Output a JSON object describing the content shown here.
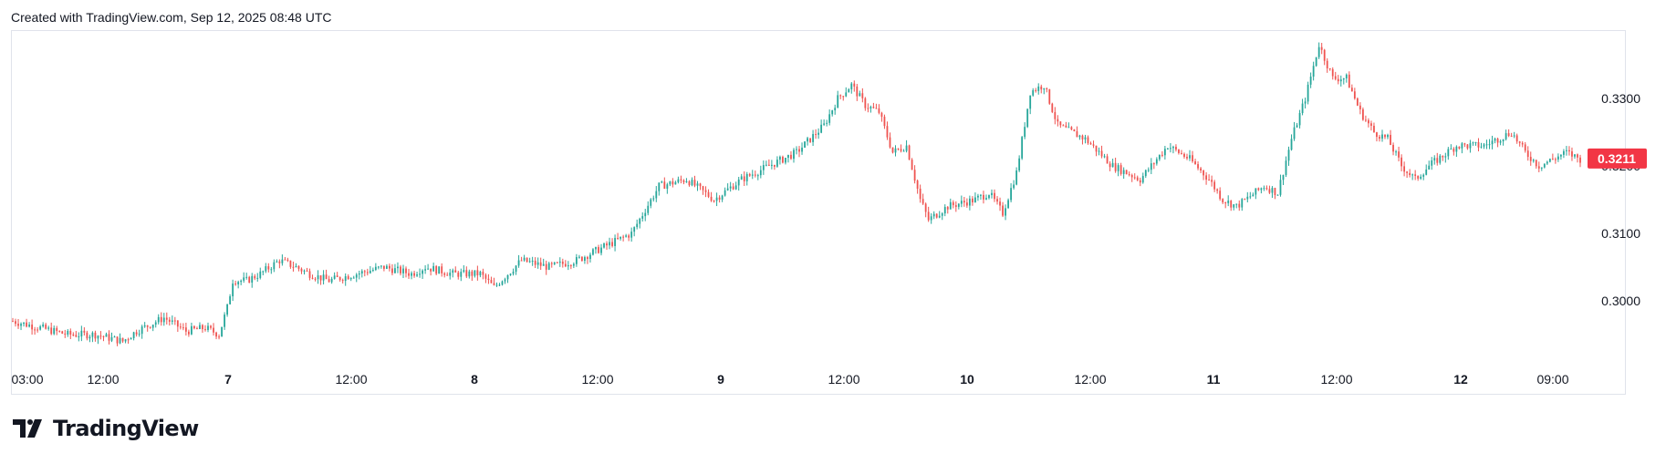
{
  "header": {
    "text": "Created with TradingView.com, Sep 12, 2025 08:48 UTC"
  },
  "brand": {
    "name": "TradingView"
  },
  "colors": {
    "up": "#26a69a",
    "down": "#ef5350",
    "last_price_bg": "#f23645",
    "axis_text": "#131722"
  },
  "chart_data": {
    "type": "candlestick",
    "x_ticks": [
      {
        "label": "03:00",
        "bold": false
      },
      {
        "label": "12:00",
        "bold": false
      },
      {
        "label": "7",
        "bold": true
      },
      {
        "label": "12:00",
        "bold": false
      },
      {
        "label": "8",
        "bold": true
      },
      {
        "label": "12:00",
        "bold": false
      },
      {
        "label": "9",
        "bold": true
      },
      {
        "label": "12:00",
        "bold": false
      },
      {
        "label": "10",
        "bold": true
      },
      {
        "label": "12:00",
        "bold": false
      },
      {
        "label": "11",
        "bold": true
      },
      {
        "label": "12:00",
        "bold": false
      },
      {
        "label": "12",
        "bold": true
      },
      {
        "label": "09:00",
        "bold": false
      }
    ],
    "y_ticks": [
      "0.3300",
      "0.3200",
      "0.3100",
      "0.3000"
    ],
    "y_range": [
      0.292,
      0.34
    ],
    "last_price": "0.3211",
    "close_trace": [
      [
        0,
        0.297
      ],
      [
        10,
        0.296
      ],
      [
        20,
        0.295
      ],
      [
        30,
        0.295
      ],
      [
        40,
        0.294
      ],
      [
        45,
        0.2955
      ],
      [
        55,
        0.2975
      ],
      [
        63,
        0.2955
      ],
      [
        70,
        0.296
      ],
      [
        75,
        0.295
      ],
      [
        78,
        0.299
      ],
      [
        80,
        0.303
      ],
      [
        85,
        0.303
      ],
      [
        90,
        0.304
      ],
      [
        97,
        0.306
      ],
      [
        103,
        0.305
      ],
      [
        108,
        0.304
      ],
      [
        115,
        0.303
      ],
      [
        125,
        0.304
      ],
      [
        135,
        0.305
      ],
      [
        145,
        0.304
      ],
      [
        150,
        0.305
      ],
      [
        160,
        0.304
      ],
      [
        170,
        0.304
      ],
      [
        175,
        0.302
      ],
      [
        185,
        0.306
      ],
      [
        195,
        0.305
      ],
      [
        205,
        0.306
      ],
      [
        215,
        0.308
      ],
      [
        225,
        0.31
      ],
      [
        235,
        0.317
      ],
      [
        245,
        0.318
      ],
      [
        255,
        0.315
      ],
      [
        265,
        0.318
      ],
      [
        275,
        0.32
      ],
      [
        285,
        0.322
      ],
      [
        295,
        0.326
      ],
      [
        300,
        0.33
      ],
      [
        305,
        0.332
      ],
      [
        310,
        0.329
      ],
      [
        315,
        0.328
      ],
      [
        320,
        0.322
      ],
      [
        325,
        0.323
      ],
      [
        330,
        0.315
      ],
      [
        333,
        0.312
      ],
      [
        340,
        0.314
      ],
      [
        350,
        0.315
      ],
      [
        355,
        0.316
      ],
      [
        360,
        0.313
      ],
      [
        365,
        0.319
      ],
      [
        370,
        0.331
      ],
      [
        375,
        0.332
      ],
      [
        380,
        0.326
      ],
      [
        385,
        0.325
      ],
      [
        390,
        0.324
      ],
      [
        400,
        0.32
      ],
      [
        410,
        0.318
      ],
      [
        420,
        0.323
      ],
      [
        428,
        0.321
      ],
      [
        435,
        0.318
      ],
      [
        440,
        0.315
      ],
      [
        445,
        0.314
      ],
      [
        455,
        0.317
      ],
      [
        460,
        0.316
      ],
      [
        465,
        0.324
      ],
      [
        470,
        0.33
      ],
      [
        475,
        0.338
      ],
      [
        480,
        0.333
      ],
      [
        485,
        0.333
      ],
      [
        490,
        0.328
      ],
      [
        495,
        0.325
      ],
      [
        500,
        0.324
      ],
      [
        505,
        0.32
      ],
      [
        510,
        0.318
      ],
      [
        515,
        0.32
      ],
      [
        525,
        0.323
      ],
      [
        535,
        0.323
      ],
      [
        545,
        0.325
      ],
      [
        550,
        0.322
      ],
      [
        555,
        0.32
      ],
      [
        565,
        0.322
      ],
      [
        570,
        0.321
      ]
    ]
  }
}
